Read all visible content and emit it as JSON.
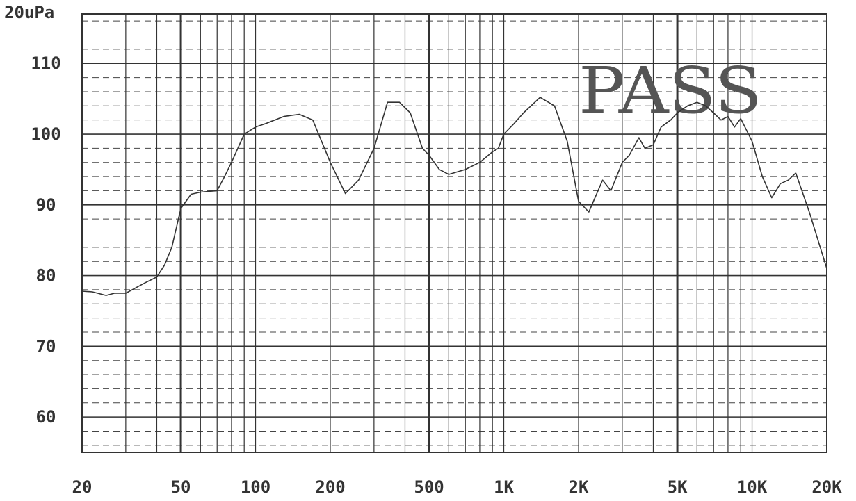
{
  "chart_data": {
    "type": "line",
    "title": "",
    "xlabel": "",
    "ylabel": "20uPa",
    "x_scale": "log",
    "xlim": [
      20,
      20000
    ],
    "ylim": [
      55,
      117
    ],
    "x_tick_labels": [
      "20",
      "50",
      "100",
      "200",
      "500",
      "1K",
      "2K",
      "5K",
      "10K",
      "20K"
    ],
    "x_tick_values": [
      20,
      50,
      100,
      200,
      500,
      1000,
      2000,
      5000,
      10000,
      20000
    ],
    "y_tick_labels": [
      "110",
      "100",
      "90",
      "80",
      "70",
      "60"
    ],
    "y_tick_values": [
      110,
      100,
      90,
      80,
      70,
      60
    ],
    "grid": true,
    "annotation": "PASS",
    "line_color": "#333333",
    "series": [
      {
        "x": [
          20,
          22,
          25,
          27,
          30,
          33,
          36,
          40,
          43,
          46,
          50,
          55,
          60,
          70,
          75,
          80,
          90,
          100,
          110,
          130,
          150,
          170,
          200,
          230,
          260,
          300,
          340,
          380,
          420,
          470,
          500,
          550,
          600,
          700,
          800,
          900,
          950,
          1000,
          1100,
          1200,
          1400,
          1600,
          1800,
          2000,
          2200,
          2500,
          2700,
          3000,
          3200,
          3500,
          3700,
          4000,
          4300,
          4700,
          5000,
          5500,
          6000,
          6500,
          7000,
          7500,
          8000,
          8500,
          9000,
          10000,
          11000,
          12000,
          13000,
          14000,
          15000,
          17000,
          20000
        ],
        "y": [
          77.8,
          77.7,
          77.2,
          77.5,
          77.5,
          78.3,
          79,
          79.8,
          81.5,
          84,
          89.5,
          91.5,
          91.8,
          92,
          94,
          96,
          100,
          101,
          101.5,
          102.5,
          102.8,
          102,
          96,
          91.6,
          93.5,
          98,
          104.5,
          104.5,
          103,
          98,
          97,
          95,
          94.3,
          95,
          96,
          97.5,
          98,
          100,
          101.5,
          103,
          105.2,
          104,
          99,
          90.5,
          89,
          93.5,
          92,
          96,
          97,
          99.5,
          98,
          98.5,
          101,
          102,
          103,
          104,
          104.5,
          104,
          103,
          102,
          102.5,
          101,
          102.2,
          99,
          94,
          91,
          93,
          93.5,
          94.5,
          89,
          81
        ]
      }
    ]
  }
}
